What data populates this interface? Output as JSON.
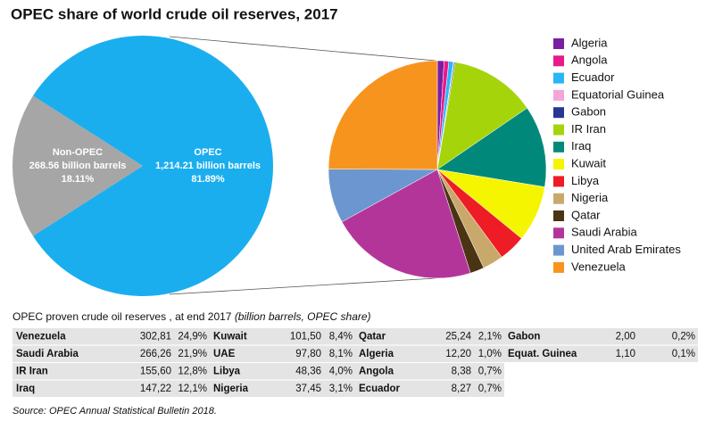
{
  "title": "OPEC share of world crude oil reserves, 2017",
  "chart_data": [
    {
      "type": "pie",
      "categories": [
        "Non-OPEC",
        "OPEC"
      ],
      "values": [
        18.11,
        81.89
      ],
      "value_labels": [
        "18.11%",
        "81.89%"
      ],
      "volume_labels": [
        "268.56 billion barrels",
        "1,214.21 billion barrels"
      ],
      "colors": [
        "#a6a6a6",
        "#1aaeef"
      ]
    },
    {
      "type": "pie",
      "legend": "right",
      "categories": [
        "Algeria",
        "Angola",
        "Ecuador",
        "Equatorial Guinea",
        "Gabon",
        "IR Iran",
        "Iraq",
        "Kuwait",
        "Libya",
        "Nigeria",
        "Qatar",
        "Saudi Arabia",
        "United Arab Emirates",
        "Venezuela"
      ],
      "values": [
        12.2,
        8.38,
        8.27,
        1.1,
        2.0,
        155.6,
        147.22,
        101.5,
        48.36,
        37.45,
        25.24,
        266.26,
        97.8,
        302.81
      ],
      "colors": [
        "#7b1fa2",
        "#e8198b",
        "#29b6f6",
        "#f4a6d7",
        "#283593",
        "#a6d40a",
        "#00897b",
        "#f5f500",
        "#ee1c25",
        "#c9a96b",
        "#4a3413",
        "#b4359a",
        "#6c96cf",
        "#f7941d"
      ]
    }
  ],
  "table": {
    "caption": "OPEC proven crude oil reserves , at end 2017",
    "caption_note": "(billion barrels, OPEC share)",
    "rows": [
      [
        "Venezuela",
        "302,81",
        "24,9%",
        "Kuwait",
        "101,50",
        "8,4%",
        "Qatar",
        "25,24",
        "2,1%",
        "Gabon",
        "2,00",
        "0,2%"
      ],
      [
        "Saudi Arabia",
        "266,26",
        "21,9%",
        "UAE",
        "97,80",
        "8,1%",
        "Algeria",
        "12,20",
        "1,0%",
        "Equat. Guinea",
        "1,10",
        "0,1%"
      ],
      [
        "IR Iran",
        "155,60",
        "12,8%",
        "Libya",
        "48,36",
        "4,0%",
        "Angola",
        "8,38",
        "0,7%"
      ],
      [
        "Iraq",
        "147,22",
        "12,1%",
        "Nigeria",
        "37,45",
        "3,1%",
        "Ecuador",
        "8,27",
        "0,7%"
      ]
    ]
  },
  "source": "Source: OPEC Annual Statistical Bulletin 2018."
}
